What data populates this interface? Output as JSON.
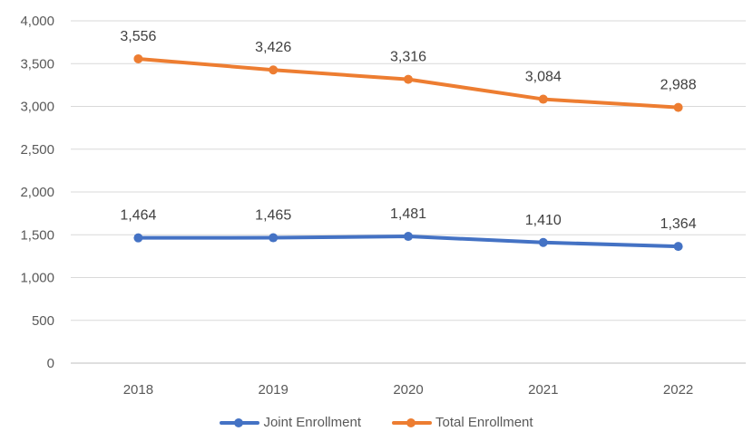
{
  "chart_data": {
    "type": "line",
    "title": "",
    "xlabel": "",
    "ylabel": "",
    "categories": [
      "2018",
      "2019",
      "2020",
      "2021",
      "2022"
    ],
    "ylim": [
      0,
      4000
    ],
    "y_ticks": [
      0,
      500,
      1000,
      1500,
      2000,
      2500,
      3000,
      3500,
      4000
    ],
    "y_tick_labels": [
      "0",
      "500",
      "1,000",
      "1,500",
      "2,000",
      "2,500",
      "3,000",
      "3,500",
      "4,000"
    ],
    "grid": true,
    "legend_position": "bottom",
    "series": [
      {
        "name": "Joint Enrollment",
        "color": "#4472C4",
        "values": [
          1464,
          1465,
          1481,
          1410,
          1364
        ],
        "labels": [
          "1,464",
          "1,465",
          "1,481",
          "1,410",
          "1,364"
        ]
      },
      {
        "name": "Total Enrollment",
        "color": "#ED7D31",
        "values": [
          3556,
          3426,
          3316,
          3084,
          2988
        ],
        "labels": [
          "3,556",
          "3,426",
          "3,316",
          "3,084",
          "2,988"
        ]
      }
    ]
  }
}
